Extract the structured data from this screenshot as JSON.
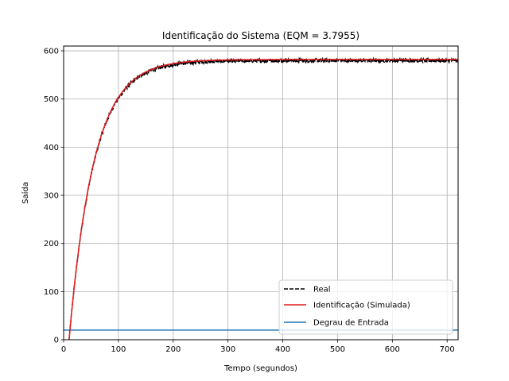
{
  "chart_data": {
    "type": "line",
    "title": "Identificação do Sistema (EQM = 3.7955)",
    "xlabel": "Tempo (segundos)",
    "ylabel": "Saída",
    "xlim": [
      0,
      720
    ],
    "ylim": [
      0,
      610
    ],
    "xticks": [
      0,
      100,
      200,
      300,
      400,
      500,
      600,
      700
    ],
    "yticks": [
      0,
      100,
      200,
      300,
      400,
      500,
      600
    ],
    "grid": true,
    "legend_position": "lower-right",
    "series": [
      {
        "name": "Real",
        "style": "dashed",
        "color": "#000000",
        "model": {
          "dead_time": 10,
          "gain_final": 580,
          "time_constant": 45,
          "noise_amplitude": 4
        },
        "x": [
          10,
          20,
          40,
          60,
          80,
          100,
          120,
          150,
          200,
          250,
          300,
          400,
          500,
          600,
          720
        ],
        "y": [
          0,
          115,
          285,
          395,
          465,
          508,
          535,
          557,
          573,
          578,
          580,
          580,
          580,
          580,
          580
        ]
      },
      {
        "name": "Identificação (Simulada)",
        "style": "solid",
        "color": "#e31a1c",
        "model": {
          "dead_time": 10,
          "gain_final": 582,
          "time_constant": 45
        },
        "x": [
          10,
          20,
          40,
          60,
          80,
          100,
          120,
          150,
          200,
          250,
          300,
          400,
          500,
          600,
          720
        ],
        "y": [
          0,
          116,
          286,
          396,
          466,
          509,
          536,
          558,
          574,
          579,
          581,
          582,
          582,
          582,
          582
        ]
      },
      {
        "name": "Degrau de Entrada",
        "style": "solid",
        "color": "#1f77b4",
        "x": [
          0,
          720
        ],
        "y": [
          20,
          20
        ]
      }
    ]
  }
}
